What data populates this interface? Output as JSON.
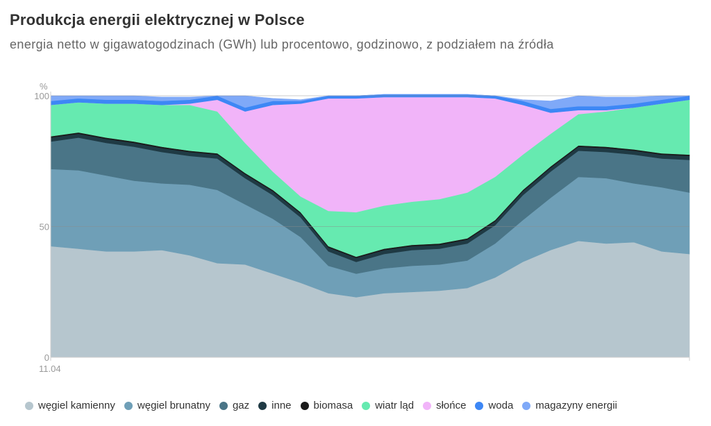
{
  "header": {
    "title": "Produkcja energii elektrycznej w Polsce",
    "subtitle": "energia netto w gigawatogodzinach (GWh) lub procentowo, godzinowo, z podziałem na źródła"
  },
  "chart_data": {
    "type": "area",
    "stacked": true,
    "ylabel": "%",
    "ylim": [
      0,
      100
    ],
    "y_ticks": [
      0,
      50,
      100
    ],
    "x_tick_labels": [
      "11.04"
    ],
    "legend_position": "bottom",
    "x": [
      0,
      1,
      2,
      3,
      4,
      5,
      6,
      7,
      8,
      9,
      10,
      11,
      12,
      13,
      14,
      15,
      16,
      17,
      18,
      19,
      20,
      21,
      22,
      23
    ],
    "series": [
      {
        "name": "węgiel kamienny",
        "color": "#b6c6ce",
        "values": [
          42.5,
          41.5,
          40.5,
          40.5,
          41.0,
          39.0,
          36.0,
          35.5,
          32.0,
          28.5,
          24.5,
          23.0,
          24.5,
          25.0,
          25.5,
          26.5,
          30.5,
          36.5,
          41.0,
          44.5,
          43.5,
          44.0,
          40.5,
          39.5
        ]
      },
      {
        "name": "węgiel brunatny",
        "color": "#6f9fb7",
        "values": [
          29.5,
          30.0,
          29.0,
          27.0,
          25.5,
          27.0,
          28.0,
          23.0,
          21.0,
          17.5,
          10.5,
          9.0,
          9.5,
          10.0,
          10.0,
          10.5,
          13.0,
          16.0,
          20.0,
          24.5,
          25.0,
          22.5,
          24.5,
          23.5
        ]
      },
      {
        "name": "gaz",
        "color": "#4a7587",
        "values": [
          10.5,
          12.5,
          12.5,
          13.0,
          12.0,
          11.0,
          12.0,
          10.0,
          9.0,
          7.5,
          5.5,
          4.5,
          5.5,
          6.0,
          6.0,
          6.5,
          7.0,
          9.5,
          10.0,
          10.0,
          10.0,
          11.0,
          11.0,
          12.5
        ]
      },
      {
        "name": "inne",
        "color": "#1f3a44",
        "values": [
          1.5,
          1.5,
          1.5,
          1.5,
          1.5,
          1.5,
          1.5,
          1.5,
          1.5,
          1.5,
          1.5,
          1.5,
          1.5,
          1.5,
          1.5,
          1.5,
          1.5,
          1.5,
          1.5,
          1.5,
          1.5,
          1.5,
          1.5,
          1.5
        ]
      },
      {
        "name": "biomasa",
        "color": "#1b1b1b",
        "values": [
          0.5,
          0.5,
          0.5,
          0.5,
          0.5,
          0.5,
          0.5,
          0.5,
          0.5,
          0.5,
          0.5,
          0.5,
          0.5,
          0.5,
          0.5,
          0.5,
          0.5,
          0.5,
          0.5,
          0.5,
          0.5,
          0.5,
          0.5,
          0.5
        ]
      },
      {
        "name": "wiatr ląd",
        "color": "#66eab0",
        "values": [
          12.0,
          11.5,
          13.0,
          14.5,
          16.0,
          17.5,
          16.0,
          11.5,
          7.0,
          6.0,
          13.5,
          17.0,
          16.5,
          16.5,
          17.0,
          17.5,
          16.5,
          13.5,
          12.5,
          12.0,
          13.5,
          16.0,
          19.0,
          21.0
        ]
      },
      {
        "name": "słońce",
        "color": "#f1b4f9",
        "values": [
          0.0,
          0.0,
          0.0,
          0.0,
          0.0,
          0.5,
          4.5,
          12.0,
          25.5,
          35.5,
          43.0,
          43.5,
          41.5,
          40.0,
          39.0,
          36.5,
          30.0,
          19.0,
          8.0,
          1.5,
          0.5,
          0.0,
          0.0,
          0.0
        ]
      },
      {
        "name": "woda",
        "color": "#3d87f5",
        "values": [
          1.5,
          1.5,
          1.5,
          1.5,
          1.5,
          1.5,
          1.5,
          1.5,
          1.5,
          1.0,
          1.0,
          1.0,
          1.0,
          1.0,
          1.0,
          1.0,
          1.0,
          1.5,
          1.5,
          1.5,
          1.5,
          1.5,
          1.5,
          1.5
        ]
      },
      {
        "name": "magazyny energii",
        "color": "#7fa9f8",
        "values": [
          2.0,
          1.0,
          1.5,
          1.5,
          1.5,
          1.0,
          0.0,
          4.5,
          1.0,
          0.5,
          0.0,
          0.0,
          0.0,
          0.0,
          0.0,
          0.0,
          0.0,
          0.5,
          3.0,
          4.0,
          3.5,
          2.5,
          1.5,
          0.0
        ]
      }
    ]
  }
}
